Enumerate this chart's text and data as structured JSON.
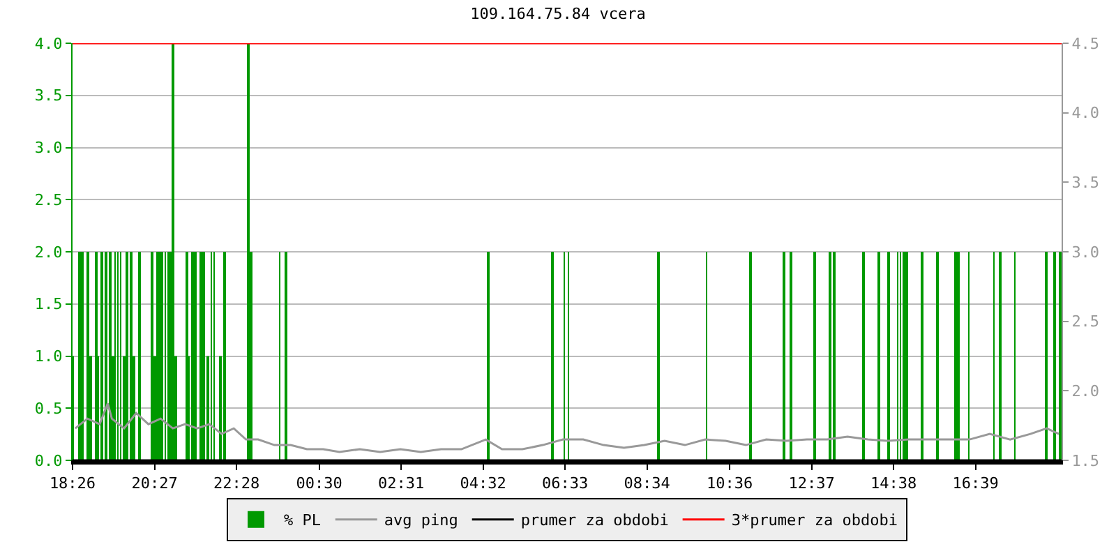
{
  "chart_data": {
    "type": "bar",
    "title": "109.164.75.84 vcera",
    "xlim": [
      "--01-01T18:26",
      "--01-02T18:46"
    ],
    "xticks": [
      {
        "value": "--01-01T18:26",
        "label": "18:26"
      },
      {
        "value": "--01-01T20:27",
        "label": "20:27"
      },
      {
        "value": "--01-01T22:28",
        "label": "22:28"
      },
      {
        "value": "--01-02T00:30",
        "label": "00:30"
      },
      {
        "value": "--01-02T02:31",
        "label": "02:31"
      },
      {
        "value": "--01-02T04:32",
        "label": "04:32"
      },
      {
        "value": "--01-02T06:33",
        "label": "06:33"
      },
      {
        "value": "--01-02T08:34",
        "label": "08:34"
      },
      {
        "value": "--01-02T10:36",
        "label": "10:36"
      },
      {
        "value": "--01-02T12:37",
        "label": "12:37"
      },
      {
        "value": "--01-02T14:38",
        "label": "14:38"
      },
      {
        "value": "--01-02T16:39",
        "label": "16:39"
      }
    ],
    "ylim": [
      0,
      4
    ],
    "yticks": [
      {
        "value": 0,
        "label": "0.0"
      },
      {
        "value": 0.5,
        "label": "0.5"
      },
      {
        "value": 1,
        "label": "1.0"
      },
      {
        "value": 1.5,
        "label": "1.5"
      },
      {
        "value": 2,
        "label": "2.0"
      },
      {
        "value": 2.5,
        "label": "2.5"
      },
      {
        "value": 3,
        "label": "3.0"
      },
      {
        "value": 3.5,
        "label": "3.5"
      },
      {
        "value": 4,
        "label": "4.0"
      }
    ],
    "y2lim": [
      1.5,
      4.5
    ],
    "y2ticks": [
      {
        "value": 1.5,
        "label": "1.5"
      },
      {
        "value": 2,
        "label": "2.0"
      },
      {
        "value": 2.5,
        "label": "2.5"
      },
      {
        "value": 3,
        "label": "3.0"
      },
      {
        "value": 3.5,
        "label": "3.5"
      },
      {
        "value": 4,
        "label": "4.0"
      },
      {
        "value": 4.5,
        "label": "4.5"
      }
    ],
    "grid": "y",
    "legend": "bottom",
    "series": [
      {
        "name": "% PL",
        "color": "#009900",
        "x": [
          "--01-01T18:26",
          "--01-01T18:37",
          "--01-01T18:41",
          "--01-01T18:49",
          "--01-01T18:52",
          "--01-01T19:01",
          "--01-01T19:04",
          "--01-01T19:10",
          "--01-01T19:16",
          "--01-01T19:22",
          "--01-01T19:26",
          "--01-01T19:29",
          "--01-01T19:33",
          "--01-01T19:37",
          "--01-01T19:43",
          "--01-01T19:47",
          "--01-01T19:53",
          "--01-01T19:57",
          "--01-01T20:05",
          "--01-01T20:24",
          "--01-01T20:28",
          "--01-01T20:32",
          "--01-01T20:36",
          "--01-01T20:39",
          "--01-01T20:43",
          "--01-01T20:47",
          "--01-01T20:50",
          "--01-01T20:55",
          "--01-01T20:59",
          "--01-01T21:15",
          "--01-01T21:18",
          "--01-01T21:23",
          "--01-01T21:28",
          "--01-01T21:35",
          "--01-01T21:40",
          "--01-01T21:45",
          "--01-01T21:51",
          "--01-01T21:55",
          "--01-01T22:05",
          "--01-01T22:11",
          "--01-01T22:45",
          "--01-01T22:50",
          "--01-01T23:32",
          "--01-01T23:41",
          "--01-02T04:39",
          "--01-02T06:14",
          "--01-02T06:32",
          "--01-02T06:38",
          "--01-02T08:51",
          "--01-02T10:02",
          "--01-02T11:07",
          "--01-02T11:56",
          "--01-02T12:06",
          "--01-02T12:41",
          "--01-02T13:04",
          "--01-02T13:11",
          "--01-02T13:53",
          "--01-02T14:17",
          "--01-02T14:31",
          "--01-02T14:44",
          "--01-02T14:48",
          "--01-02T14:53",
          "--01-02T14:57",
          "--01-02T15:20",
          "--01-02T15:42",
          "--01-02T16:09",
          "--01-02T16:13",
          "--01-02T16:29",
          "--01-02T17:06",
          "--01-02T17:16",
          "--01-02T17:37",
          "--01-02T18:23",
          "--01-02T18:35",
          "--01-02T18:44"
        ],
        "values": [
          1,
          2,
          2,
          2,
          1,
          2,
          1,
          2,
          2,
          2,
          1,
          2,
          2,
          2,
          1,
          2,
          2,
          1,
          2,
          2,
          1,
          2,
          2,
          2,
          2,
          2,
          2,
          4,
          1,
          2,
          1,
          2,
          2,
          2,
          2,
          1,
          2,
          2,
          1,
          2,
          4,
          2,
          2,
          2,
          2,
          2,
          2,
          2,
          2,
          2,
          2,
          2,
          2,
          2,
          2,
          2,
          2,
          2,
          2,
          2,
          2,
          2,
          2,
          2,
          2,
          2,
          2,
          2,
          2,
          2,
          2,
          2,
          2,
          2
        ]
      },
      {
        "name": "avg ping",
        "type": "line",
        "axis": "y2",
        "color": "#999999",
        "x": [
          "--01-01T18:30",
          "--01-01T18:48",
          "--01-01T19:06",
          "--01-01T19:18",
          "--01-01T19:24",
          "--01-01T19:42",
          "--01-01T20:00",
          "--01-01T20:18",
          "--01-01T20:36",
          "--01-01T20:54",
          "--01-01T21:12",
          "--01-01T21:30",
          "--01-01T21:48",
          "--01-01T22:06",
          "--01-01T22:24",
          "--01-01T22:42",
          "--01-01T23:00",
          "--01-01T23:24",
          "--01-01T23:48",
          "--01-02T00:12",
          "--01-02T00:36",
          "--01-02T01:00",
          "--01-02T01:30",
          "--01-02T02:00",
          "--01-02T02:30",
          "--01-02T03:00",
          "--01-02T03:30",
          "--01-02T04:00",
          "--01-02T04:36",
          "--01-02T05:00",
          "--01-02T05:30",
          "--01-02T06:00",
          "--01-02T06:30",
          "--01-02T07:00",
          "--01-02T07:30",
          "--01-02T08:00",
          "--01-02T08:30",
          "--01-02T09:00",
          "--01-02T09:30",
          "--01-02T10:00",
          "--01-02T10:30",
          "--01-02T11:00",
          "--01-02T11:30",
          "--01-02T12:00",
          "--01-02T12:30",
          "--01-02T13:00",
          "--01-02T13:30",
          "--01-02T14:00",
          "--01-02T14:30",
          "--01-02T15:00",
          "--01-02T15:30",
          "--01-02T16:00",
          "--01-02T16:30",
          "--01-02T17:00",
          "--01-02T17:30",
          "--01-02T18:00",
          "--01-02T18:24",
          "--01-02T18:42"
        ],
        "values": [
          1.73,
          1.8,
          1.76,
          1.91,
          1.8,
          1.73,
          1.84,
          1.76,
          1.8,
          1.73,
          1.76,
          1.73,
          1.76,
          1.69,
          1.73,
          1.65,
          1.65,
          1.61,
          1.61,
          1.58,
          1.58,
          1.56,
          1.58,
          1.56,
          1.58,
          1.56,
          1.58,
          1.58,
          1.65,
          1.58,
          1.58,
          1.61,
          1.65,
          1.65,
          1.61,
          1.59,
          1.61,
          1.64,
          1.61,
          1.65,
          1.64,
          1.61,
          1.65,
          1.64,
          1.65,
          1.65,
          1.67,
          1.65,
          1.64,
          1.65,
          1.65,
          1.65,
          1.65,
          1.69,
          1.65,
          1.69,
          1.73,
          1.69
        ]
      },
      {
        "name": "prumer za obdobi",
        "type": "line",
        "axis": "y2",
        "color": "#000000",
        "x": [
          "--01-01T18:26",
          "--01-02T18:46"
        ],
        "values": [
          1.5,
          1.5
        ]
      },
      {
        "name": "3*prumer za obdobi",
        "type": "line",
        "axis": "y2",
        "color": "#ff0000",
        "x": [
          "--01-01T18:26",
          "--01-02T18:46"
        ],
        "values": [
          4.5,
          4.5
        ]
      }
    ]
  }
}
